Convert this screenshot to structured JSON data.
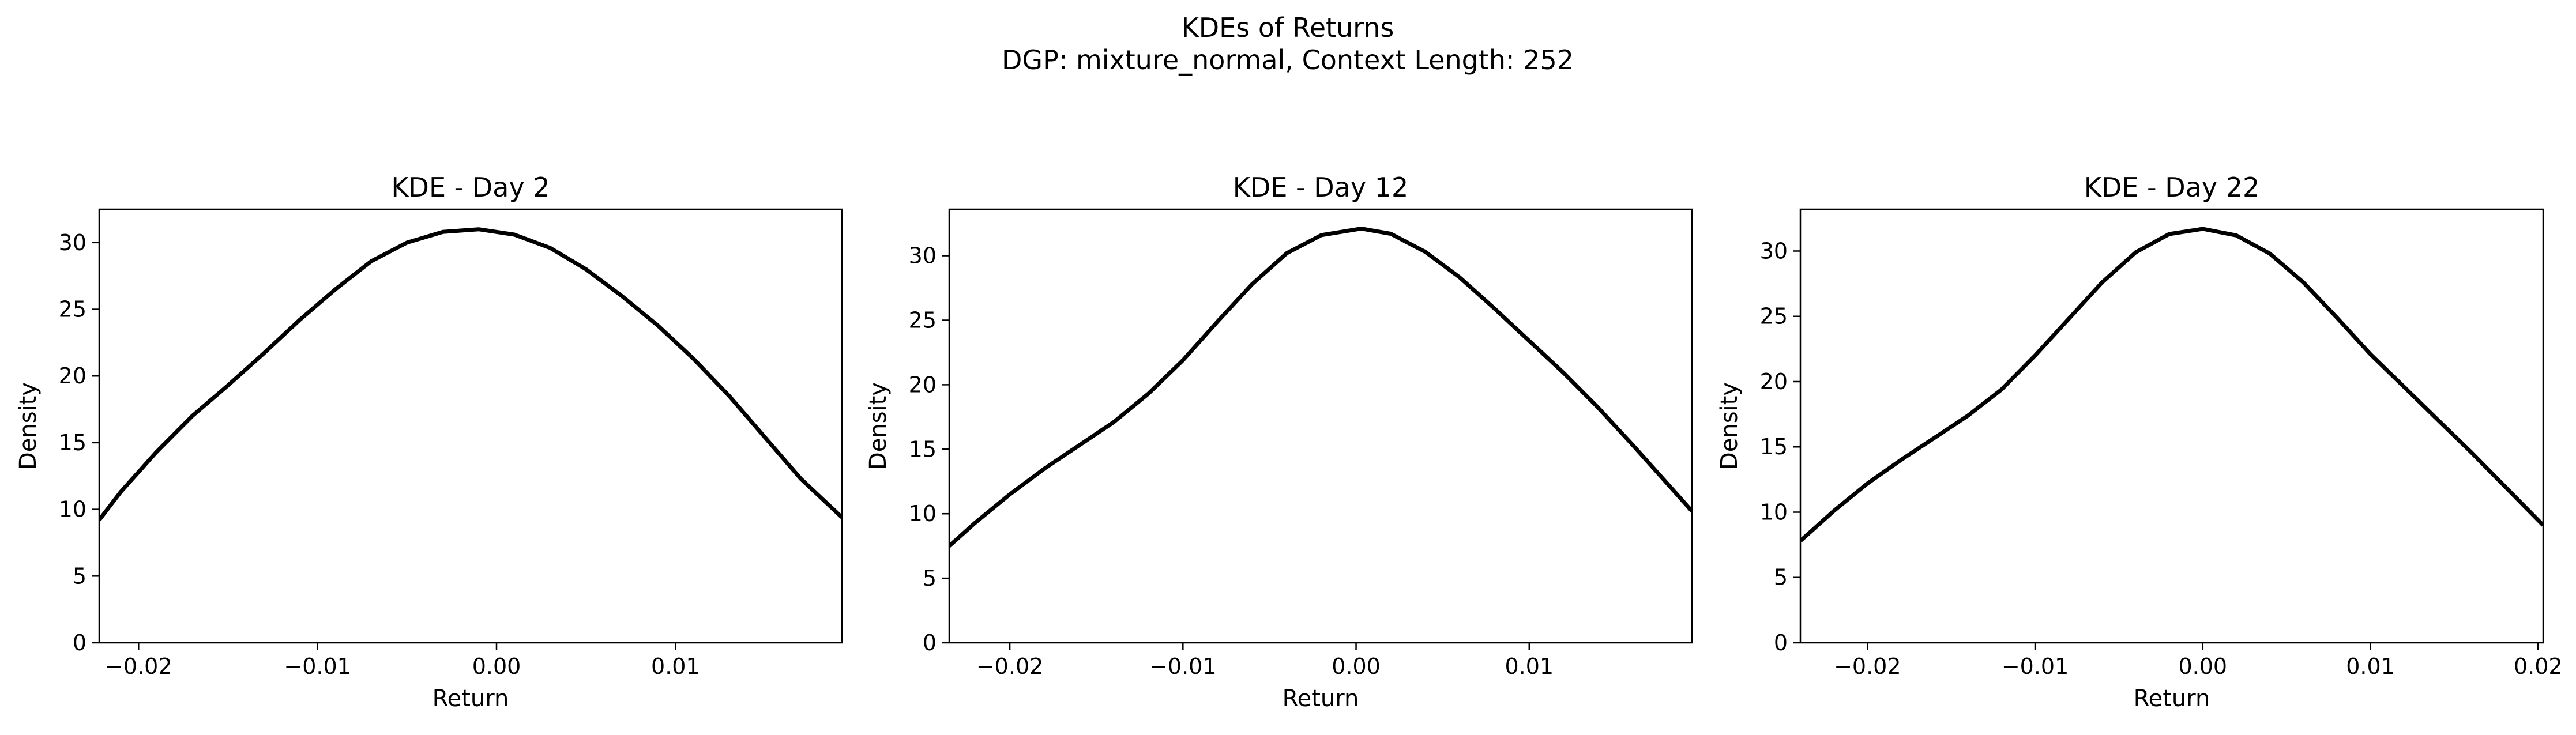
{
  "suptitle": {
    "line1": "KDEs of Returns",
    "line2": "DGP: mixture_normal, Context Length: 252"
  },
  "chart_data": [
    {
      "type": "line",
      "title": "KDE - Day 2",
      "xlabel": "Return",
      "ylabel": "Density",
      "xlim": [
        -0.0222,
        0.0193
      ],
      "ylim": [
        0,
        32.5
      ],
      "xticks": [
        -0.02,
        -0.01,
        0.0,
        0.01
      ],
      "xtick_labels": [
        "−0.02",
        "−0.01",
        "0.00",
        "0.01"
      ],
      "yticks": [
        0,
        5,
        10,
        15,
        20,
        25,
        30
      ],
      "ytick_labels": [
        "0",
        "5",
        "10",
        "15",
        "20",
        "25",
        "30"
      ],
      "grid": false,
      "x": [
        -0.0222,
        -0.021,
        -0.019,
        -0.017,
        -0.015,
        -0.013,
        -0.011,
        -0.009,
        -0.007,
        -0.005,
        -0.003,
        -0.001,
        0.001,
        0.003,
        0.005,
        0.007,
        0.009,
        0.011,
        0.013,
        0.015,
        0.017,
        0.0193
      ],
      "y": [
        9.2,
        11.3,
        14.3,
        17.0,
        19.3,
        21.7,
        24.2,
        26.5,
        28.6,
        30.0,
        30.8,
        31.0,
        30.6,
        29.6,
        28.0,
        26.0,
        23.8,
        21.3,
        18.5,
        15.4,
        12.3,
        9.4
      ]
    },
    {
      "type": "line",
      "title": "KDE - Day 12",
      "xlabel": "Return",
      "ylabel": "Density",
      "xlim": [
        -0.0235,
        0.0194
      ],
      "ylim": [
        0,
        33.6
      ],
      "xticks": [
        -0.02,
        -0.01,
        0.0,
        0.01
      ],
      "xtick_labels": [
        "−0.02",
        "−0.01",
        "0.00",
        "0.01"
      ],
      "yticks": [
        0,
        5,
        10,
        15,
        20,
        25,
        30
      ],
      "ytick_labels": [
        "0",
        "5",
        "10",
        "15",
        "20",
        "25",
        "30"
      ],
      "grid": false,
      "x": [
        -0.0235,
        -0.022,
        -0.02,
        -0.018,
        -0.016,
        -0.014,
        -0.012,
        -0.01,
        -0.008,
        -0.006,
        -0.004,
        -0.002,
        0.0003,
        0.002,
        0.004,
        0.006,
        0.008,
        0.01,
        0.012,
        0.014,
        0.016,
        0.018,
        0.0194
      ],
      "y": [
        7.5,
        9.3,
        11.5,
        13.5,
        15.3,
        17.1,
        19.3,
        21.9,
        24.9,
        27.8,
        30.2,
        31.6,
        32.1,
        31.7,
        30.3,
        28.3,
        25.9,
        23.4,
        20.9,
        18.2,
        15.3,
        12.3,
        10.2
      ]
    },
    {
      "type": "line",
      "title": "KDE - Day 22",
      "xlabel": "Return",
      "ylabel": "Density",
      "xlim": [
        -0.024,
        0.0203
      ],
      "ylim": [
        0,
        33.2
      ],
      "xticks": [
        -0.02,
        -0.01,
        0.0,
        0.01,
        0.02
      ],
      "xtick_labels": [
        "−0.02",
        "−0.01",
        "0.00",
        "0.01",
        "0.02"
      ],
      "yticks": [
        0,
        5,
        10,
        15,
        20,
        25,
        30
      ],
      "ytick_labels": [
        "0",
        "5",
        "10",
        "15",
        "20",
        "25",
        "30"
      ],
      "grid": false,
      "x": [
        -0.024,
        -0.022,
        -0.02,
        -0.018,
        -0.016,
        -0.014,
        -0.012,
        -0.01,
        -0.008,
        -0.006,
        -0.004,
        -0.002,
        0.0,
        0.002,
        0.004,
        0.006,
        0.008,
        0.01,
        0.012,
        0.014,
        0.016,
        0.018,
        0.0203
      ],
      "y": [
        7.8,
        10.1,
        12.2,
        14.0,
        15.7,
        17.4,
        19.4,
        22.0,
        24.8,
        27.6,
        29.9,
        31.3,
        31.7,
        31.2,
        29.8,
        27.6,
        24.9,
        22.1,
        19.6,
        17.1,
        14.6,
        12.0,
        9.0
      ]
    }
  ]
}
